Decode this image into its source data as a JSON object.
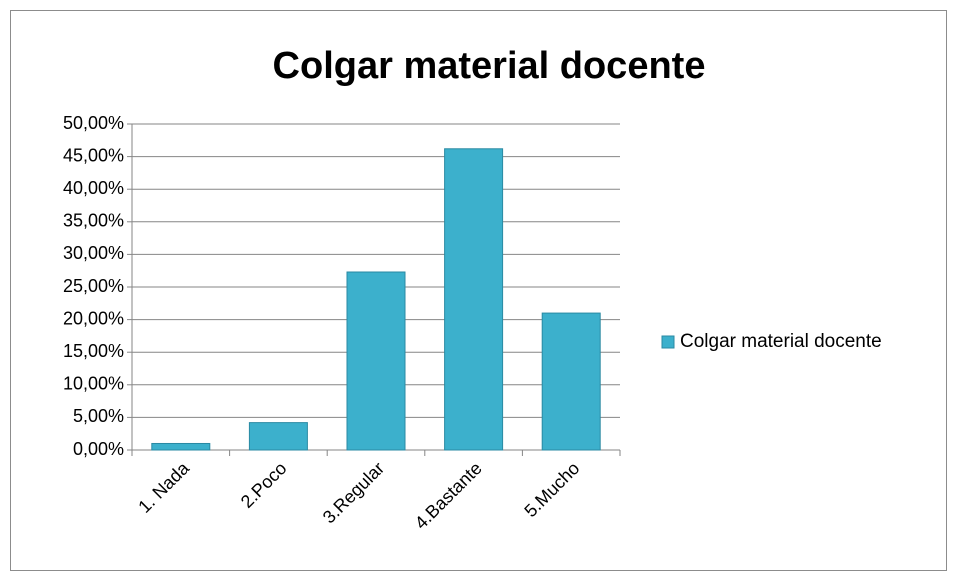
{
  "chart_data": {
    "type": "bar",
    "title": "Colgar material docente",
    "categories": [
      "1. Nada",
      "2.Poco",
      "3.Regular",
      "4.Bastante",
      "5.Mucho"
    ],
    "series": [
      {
        "name": "Colgar material docente",
        "color": "#3cb0cc",
        "values": [
          1.0,
          4.2,
          27.3,
          46.2,
          21.0
        ]
      }
    ],
    "ylim": [
      0,
      50
    ],
    "yticks": [
      {
        "value": 0,
        "label": "0,00%"
      },
      {
        "value": 5,
        "label": "5,00%"
      },
      {
        "value": 10,
        "label": "10,00%"
      },
      {
        "value": 15,
        "label": "15,00%"
      },
      {
        "value": 20,
        "label": "20,00%"
      },
      {
        "value": 25,
        "label": "25,00%"
      },
      {
        "value": 30,
        "label": "30,00%"
      },
      {
        "value": 35,
        "label": "35,00%"
      },
      {
        "value": 40,
        "label": "40,00%"
      },
      {
        "value": 45,
        "label": "45,00%"
      },
      {
        "value": 50,
        "label": "50,00%"
      }
    ],
    "grid": true,
    "legend": "right"
  }
}
